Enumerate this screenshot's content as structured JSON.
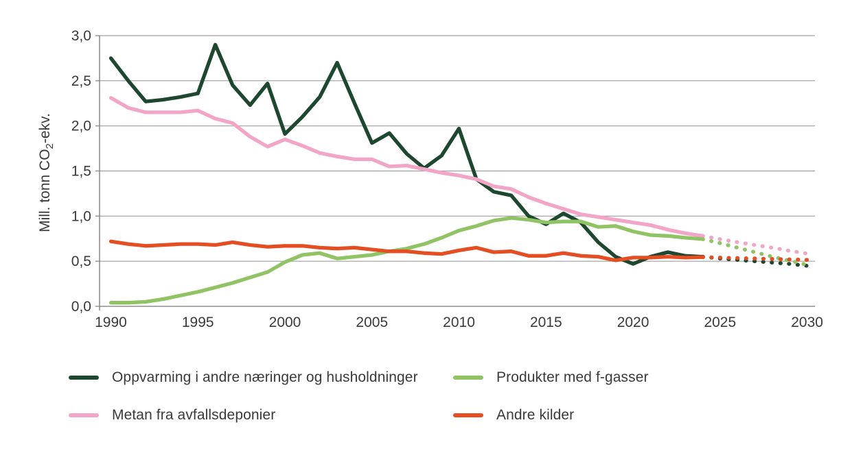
{
  "chart_data": {
    "type": "line",
    "title": "",
    "xlabel": "",
    "ylabel_prefix": "Mill. tonn CO",
    "ylabel_sub": "2",
    "ylabel_suffix": "-ekv.",
    "ylim": [
      0,
      3
    ],
    "xlim": [
      1989.35,
      2030.45
    ],
    "grid": true,
    "legend_position": "bottom",
    "x_tick_years": [
      1990,
      1995,
      2000,
      2005,
      2010,
      2015,
      2020,
      2025,
      2030
    ],
    "x_tick_labels": [
      "1990",
      "1995",
      "2000",
      "2005",
      "2010",
      "2015",
      "2020",
      "2025",
      "2030"
    ],
    "y_tick_values": [
      0,
      0.5,
      1,
      1.5,
      2,
      2.5,
      3
    ],
    "y_tick_labels": [
      "0,0",
      "0,5",
      "1,0",
      "1,5",
      "2,0",
      "2,5",
      "3,0"
    ],
    "years_hist": [
      1990,
      1991,
      1992,
      1993,
      1994,
      1995,
      1996,
      1997,
      1998,
      1999,
      2000,
      2001,
      2002,
      2003,
      2004,
      2005,
      2006,
      2007,
      2008,
      2009,
      2010,
      2011,
      2012,
      2013,
      2014,
      2015,
      2016,
      2017,
      2018,
      2019,
      2020,
      2021,
      2022,
      2023,
      2024
    ],
    "years_proj": [
      2024,
      2025,
      2026,
      2027,
      2028,
      2029,
      2030
    ],
    "series": [
      {
        "name": "Oppvarming i andre næringer og husholdninger",
        "color": "#1d472e",
        "hist": [
          2.75,
          2.5,
          2.27,
          2.29,
          2.32,
          2.36,
          2.9,
          2.45,
          2.23,
          2.47,
          1.91,
          2.1,
          2.32,
          2.7,
          2.25,
          1.81,
          1.92,
          1.69,
          1.53,
          1.67,
          1.97,
          1.41,
          1.27,
          1.23,
          1.0,
          0.91,
          1.03,
          0.93,
          0.71,
          0.55,
          0.47,
          0.55,
          0.6,
          0.56,
          0.55
        ],
        "proj": [
          0.55,
          0.53,
          0.515,
          0.5,
          0.485,
          0.47,
          0.45
        ]
      },
      {
        "name": "Metan fra avfallsdeponier",
        "color": "#f2a5c7",
        "hist": [
          2.31,
          2.2,
          2.15,
          2.15,
          2.15,
          2.17,
          2.08,
          2.03,
          1.88,
          1.77,
          1.85,
          1.78,
          1.7,
          1.66,
          1.63,
          1.63,
          1.55,
          1.56,
          1.52,
          1.48,
          1.45,
          1.41,
          1.33,
          1.3,
          1.21,
          1.14,
          1.08,
          1.02,
          0.99,
          0.96,
          0.93,
          0.9,
          0.85,
          0.81,
          0.78
        ],
        "proj": [
          0.78,
          0.745,
          0.71,
          0.68,
          0.65,
          0.615,
          0.585
        ]
      },
      {
        "name": "Produkter med f-gasser",
        "color": "#8fc363",
        "hist": [
          0.04,
          0.04,
          0.05,
          0.08,
          0.12,
          0.16,
          0.21,
          0.26,
          0.32,
          0.38,
          0.49,
          0.57,
          0.59,
          0.53,
          0.55,
          0.57,
          0.61,
          0.64,
          0.69,
          0.76,
          0.84,
          0.89,
          0.95,
          0.98,
          0.96,
          0.93,
          0.94,
          0.94,
          0.88,
          0.89,
          0.83,
          0.79,
          0.78,
          0.76,
          0.745
        ],
        "proj": [
          0.745,
          0.7,
          0.65,
          0.6,
          0.55,
          0.505,
          0.46
        ]
      },
      {
        "name": "Andre kilder",
        "color": "#e54d22",
        "hist": [
          0.72,
          0.69,
          0.67,
          0.68,
          0.69,
          0.69,
          0.68,
          0.71,
          0.68,
          0.66,
          0.67,
          0.67,
          0.65,
          0.64,
          0.65,
          0.63,
          0.61,
          0.61,
          0.59,
          0.58,
          0.62,
          0.65,
          0.6,
          0.61,
          0.56,
          0.56,
          0.59,
          0.56,
          0.55,
          0.51,
          0.54,
          0.54,
          0.55,
          0.54,
          0.545
        ],
        "proj": [
          0.545,
          0.54,
          0.535,
          0.53,
          0.525,
          0.52,
          0.515
        ]
      }
    ],
    "colors": {
      "grid": "#9e9e9e",
      "axis": "#8d8d8d",
      "tick_text": "#3a3a3a"
    }
  },
  "legend": {
    "items": [
      {
        "label": "Oppvarming i andre næringer og husholdninger"
      },
      {
        "label": "Metan fra avfallsdeponier"
      },
      {
        "label": "Produkter med f-gasser"
      },
      {
        "label": "Andre kilder"
      }
    ]
  }
}
